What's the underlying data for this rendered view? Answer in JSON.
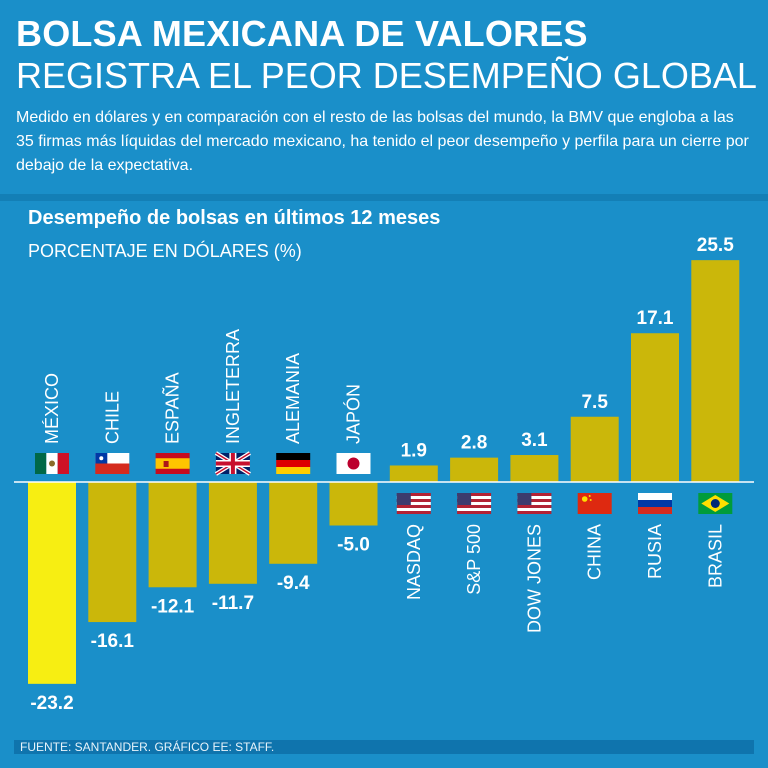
{
  "header": {
    "title_line1": "BOLSA MEXICANA DE VALORES",
    "title_line2": "REGISTRA EL PEOR DESEMPEÑO GLOBAL",
    "description": "Medido en dólares y en comparación con el resto de las bolsas del mundo, la BMV que engloba a las 35 firmas más líquidas del mercado mexicano, ha tenido el peor desempeño y perfila para un cierre por debajo de la expectativa."
  },
  "chart_data": {
    "type": "bar",
    "title": "Desempeño de bolsas en últimos 12 meses",
    "subtitle": "PORCENTAJE EN DÓLARES (%)",
    "categories": [
      "MÉXICO",
      "CHILE",
      "ESPAÑA",
      "INGLETERRA",
      "ALEMANIA",
      "JAPÓN",
      "NASDAQ",
      "S&P 500",
      "DOW JONES",
      "CHINA",
      "RUSIA",
      "BRASIL"
    ],
    "values": [
      -23.2,
      -16.1,
      -12.1,
      -11.7,
      -9.4,
      -5.0,
      1.9,
      2.8,
      3.1,
      7.5,
      17.1,
      25.5
    ],
    "value_labels": [
      "-23.2",
      "-16.1",
      "-12.1",
      "-11.7",
      "-9.4",
      "-5.0",
      "1.9",
      "2.8",
      "3.1",
      "7.5",
      "17.1",
      "25.5"
    ],
    "flags": [
      "mexico-flag",
      "chile-flag",
      "spain-flag",
      "uk-flag",
      "germany-flag",
      "japan-flag",
      "usa-flag",
      "usa-flag",
      "usa-flag",
      "china-flag",
      "russia-flag",
      "brazil-flag"
    ],
    "highlight_category": "MÉXICO",
    "ylim": [
      -23.2,
      25.5
    ],
    "colors": {
      "bar": "#cbb70a",
      "highlight": "#f7ee12",
      "axis": "#ffffff"
    }
  },
  "footer": {
    "source": "FUENTE: SANTANDER. GRÁFICO EE: STAFF."
  }
}
